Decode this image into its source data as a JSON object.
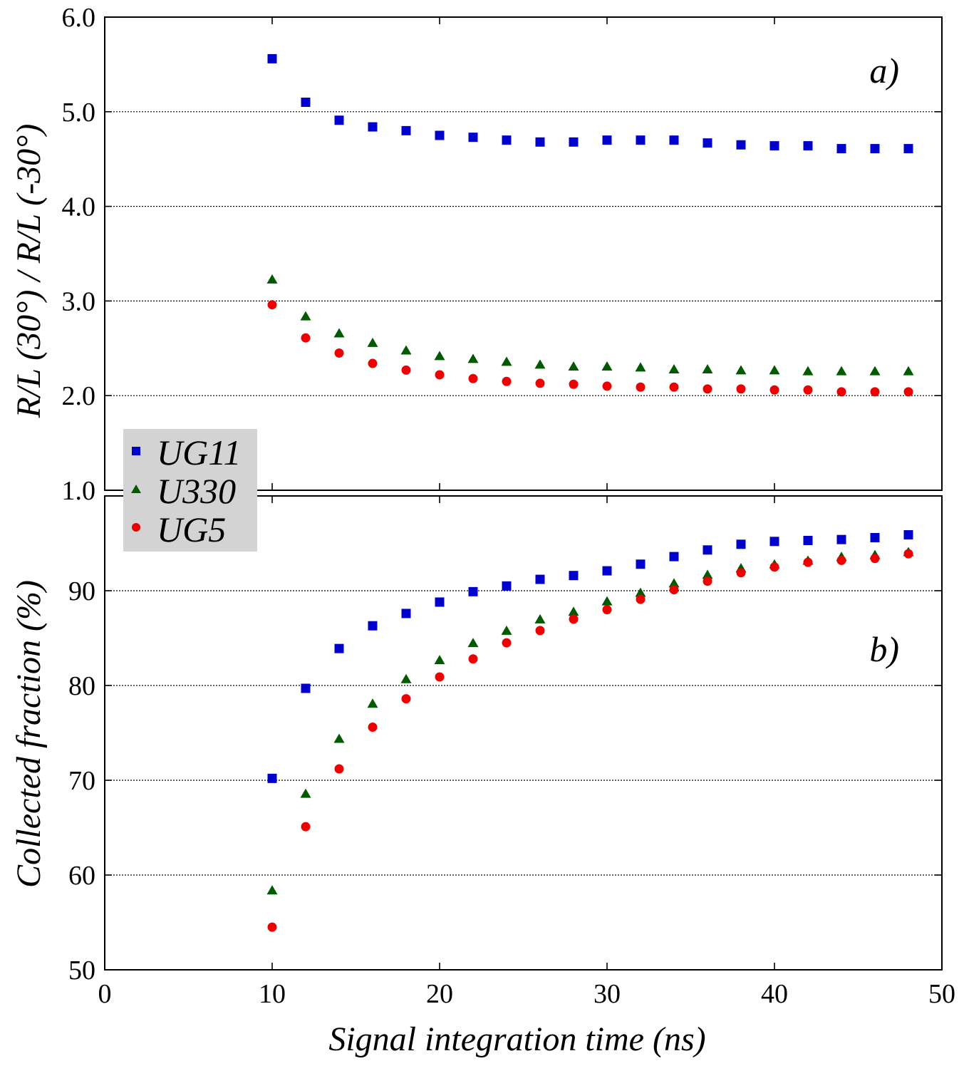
{
  "chart_data": [
    {
      "type": "scatter",
      "panel_label": "a)",
      "ylabel": "R/L (30°) / R/L (-30°)",
      "ylim": [
        1.0,
        6.0
      ],
      "yticks": [
        "1.0",
        "2.0",
        "3.0",
        "4.0",
        "5.0",
        "6.0"
      ],
      "xlim": [
        0,
        50
      ],
      "grid": "horizontal dotted",
      "x": [
        10,
        12,
        14,
        16,
        18,
        20,
        22,
        24,
        26,
        28,
        30,
        32,
        34,
        36,
        38,
        40,
        42,
        44,
        46,
        48
      ],
      "series": [
        {
          "name": "UG11",
          "marker": "square",
          "color": "#0000cc",
          "values": [
            5.56,
            5.1,
            4.91,
            4.84,
            4.8,
            4.75,
            4.73,
            4.7,
            4.68,
            4.68,
            4.7,
            4.7,
            4.7,
            4.67,
            4.65,
            4.64,
            4.64,
            4.61,
            4.61,
            4.61
          ]
        },
        {
          "name": "U330",
          "marker": "triangle",
          "color": "#005a00",
          "values": [
            3.23,
            2.84,
            2.66,
            2.56,
            2.48,
            2.42,
            2.39,
            2.36,
            2.33,
            2.31,
            2.31,
            2.3,
            2.28,
            2.28,
            2.27,
            2.27,
            2.26,
            2.26,
            2.26,
            2.26
          ]
        },
        {
          "name": "UG5",
          "marker": "circle",
          "color": "#ee0000",
          "values": [
            2.96,
            2.61,
            2.45,
            2.34,
            2.27,
            2.22,
            2.18,
            2.15,
            2.13,
            2.12,
            2.1,
            2.09,
            2.09,
            2.07,
            2.07,
            2.06,
            2.06,
            2.04,
            2.04,
            2.04
          ]
        }
      ]
    },
    {
      "type": "scatter",
      "panel_label": "b)",
      "ylabel": "Collected fraction (%)",
      "xlabel": "Signal integration time (ns)",
      "ylim": [
        50,
        100
      ],
      "yticks": [
        "50",
        "60",
        "70",
        "80",
        "90"
      ],
      "xlim": [
        0,
        50
      ],
      "xticks": [
        "0",
        "10",
        "20",
        "30",
        "40",
        "50"
      ],
      "grid": "horizontal dotted",
      "x": [
        10,
        12,
        14,
        16,
        18,
        20,
        22,
        24,
        26,
        28,
        30,
        32,
        34,
        36,
        38,
        40,
        42,
        44,
        46,
        48
      ],
      "series": [
        {
          "name": "UG11",
          "marker": "square",
          "color": "#0000cc",
          "values": [
            70.2,
            79.7,
            83.9,
            86.3,
            87.6,
            88.8,
            89.9,
            90.5,
            91.2,
            91.6,
            92.1,
            92.8,
            93.6,
            94.3,
            94.9,
            95.2,
            95.3,
            95.4,
            95.6,
            95.9
          ]
        },
        {
          "name": "U330",
          "marker": "triangle",
          "color": "#005a00",
          "values": [
            58.4,
            68.6,
            74.4,
            78.1,
            80.7,
            82.7,
            84.5,
            85.8,
            87.0,
            87.8,
            88.9,
            89.8,
            90.8,
            91.7,
            92.4,
            92.8,
            93.2,
            93.6,
            93.8,
            94.1
          ]
        },
        {
          "name": "UG5",
          "marker": "circle",
          "color": "#ee0000",
          "values": [
            54.5,
            65.1,
            71.2,
            75.6,
            78.6,
            80.9,
            82.8,
            84.5,
            85.8,
            87.0,
            88.0,
            89.1,
            90.1,
            91.0,
            91.9,
            92.5,
            93.0,
            93.2,
            93.4,
            93.9
          ]
        }
      ]
    }
  ],
  "legend": {
    "placement": "lower-left of panel a",
    "background": "#d3d3d3",
    "entries": [
      {
        "label": "UG11",
        "color": "#0000cc",
        "marker": "square"
      },
      {
        "label": "U330",
        "color": "#005a00",
        "marker": "triangle"
      },
      {
        "label": "UG5",
        "color": "#ee0000",
        "marker": "circle"
      }
    ]
  }
}
